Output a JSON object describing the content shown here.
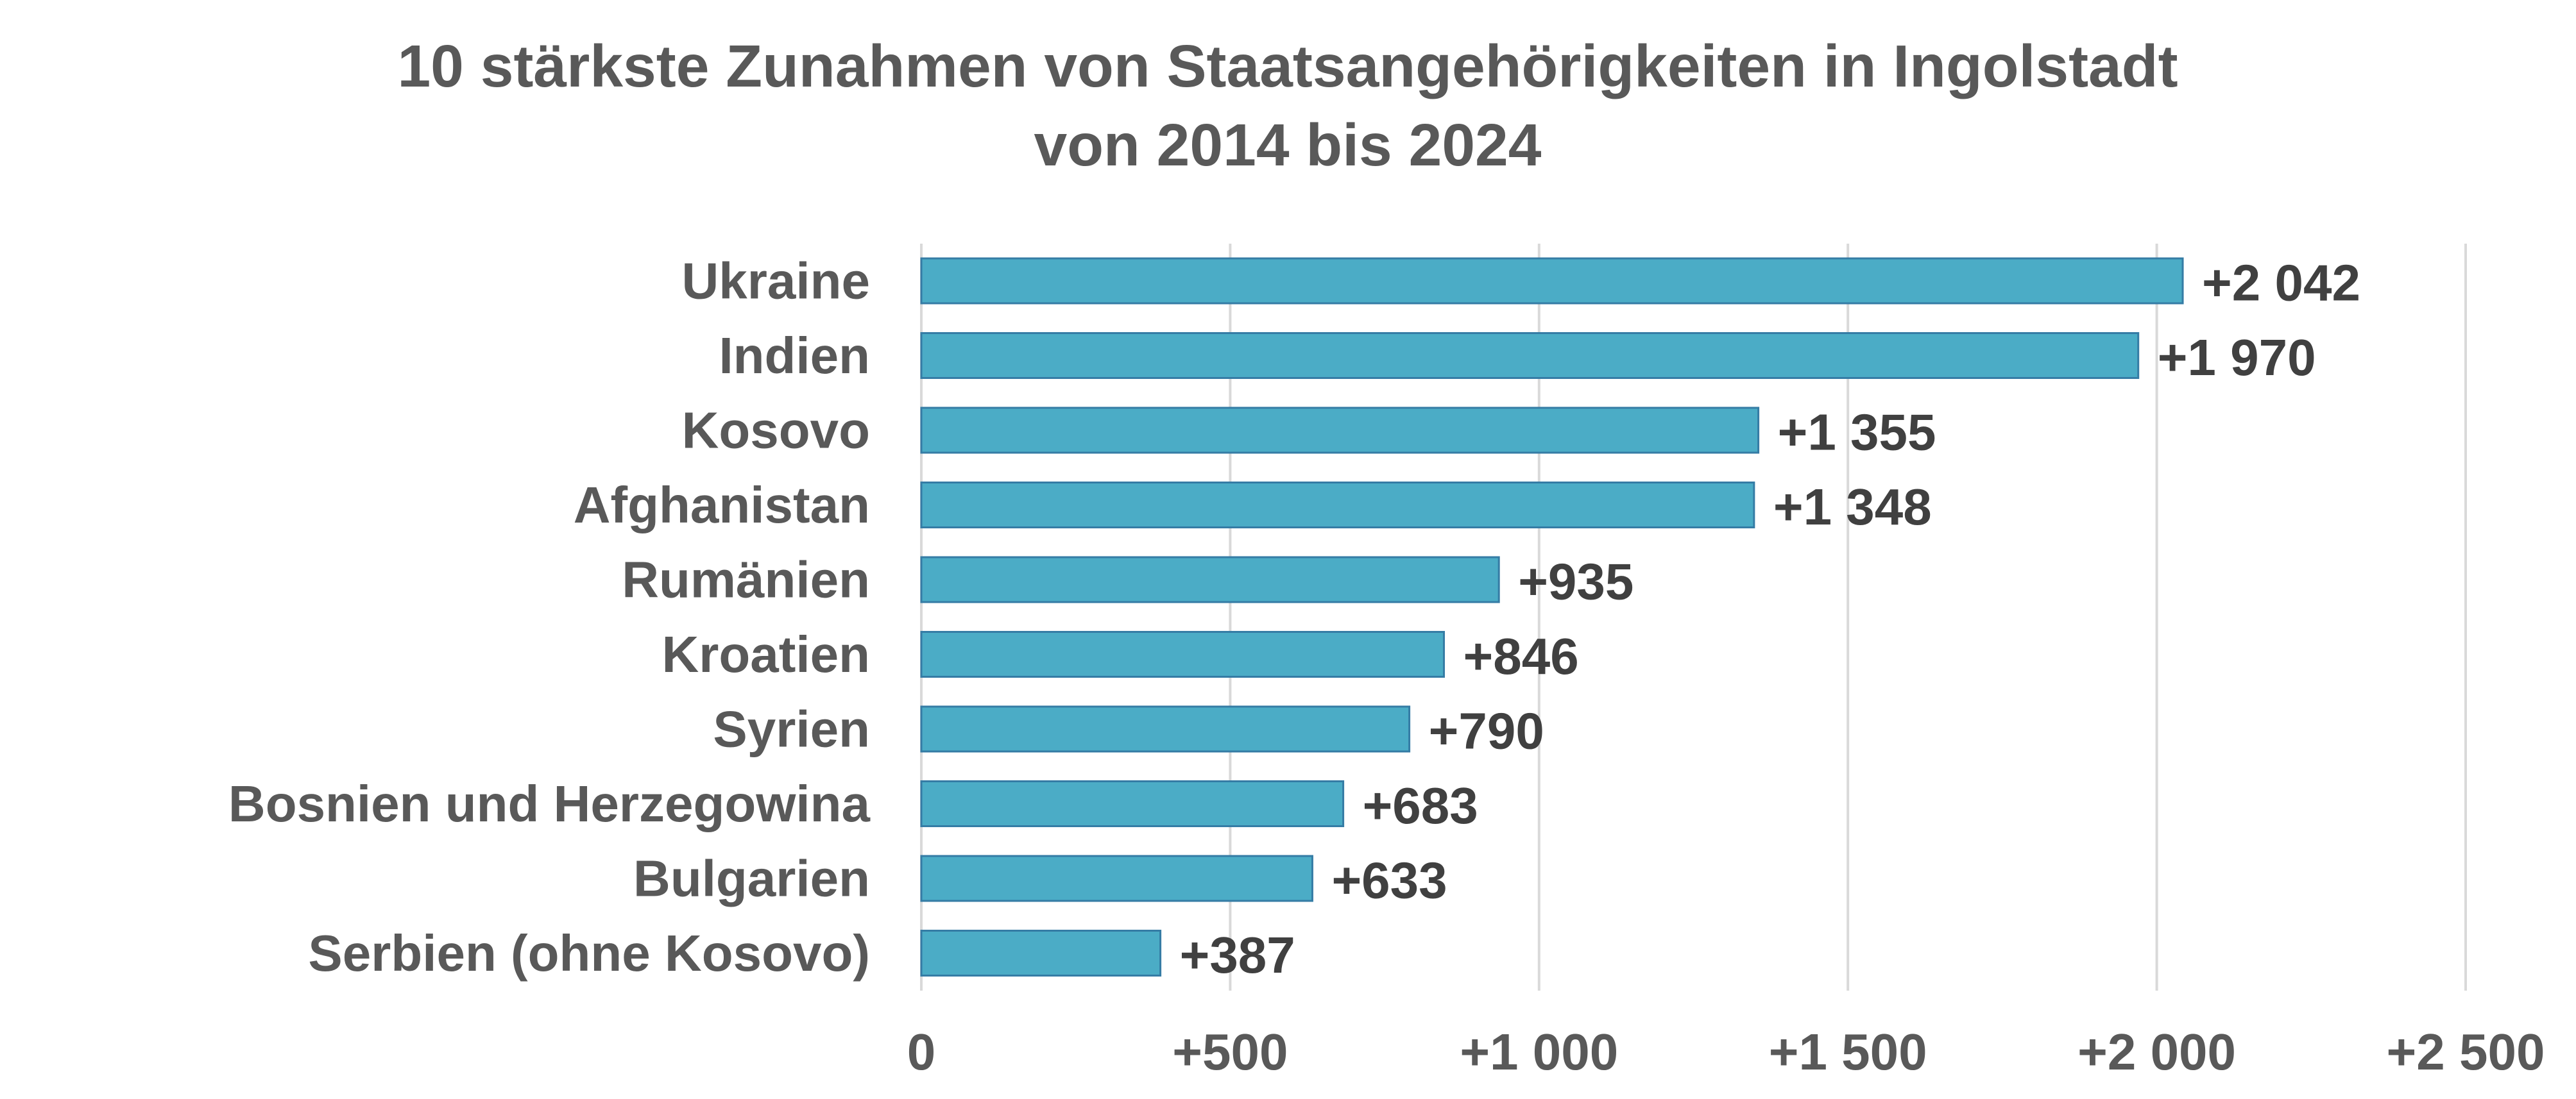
{
  "chart_data": {
    "type": "bar",
    "orientation": "horizontal",
    "title": "10 stärkste Zunahmen von Staatsangehörigkeiten in Ingolstadt",
    "subtitle": "von 2014 bis 2024",
    "categories": [
      "Ukraine",
      "Indien",
      "Kosovo",
      "Afghanistan",
      "Rumänien",
      "Kroatien",
      "Syrien",
      "Bosnien und Herzegowina",
      "Bulgarien",
      "Serbien (ohne Kosovo)"
    ],
    "values": [
      2042,
      1970,
      1355,
      1348,
      935,
      846,
      790,
      683,
      633,
      387
    ],
    "data_labels": [
      "+2 042",
      "+1 970",
      "+1 355",
      "+1 348",
      "+935",
      "+846",
      "+790",
      "+683",
      "+633",
      "+387"
    ],
    "xlim": [
      0,
      2500
    ],
    "x_ticks": [
      0,
      500,
      1000,
      1500,
      2000,
      2500
    ],
    "x_tick_labels": [
      "0",
      "+500",
      "+1 000",
      "+1 500",
      "+2 000",
      "+2 500"
    ],
    "xlabel": "",
    "ylabel": "",
    "grid": "vertical",
    "legend": "none",
    "colors": {
      "bar_fill": "#4bacc6",
      "bar_stroke": "#357ca5",
      "gridline": "#d9d9d9",
      "text": "#595959",
      "data_label": "#404040"
    }
  }
}
